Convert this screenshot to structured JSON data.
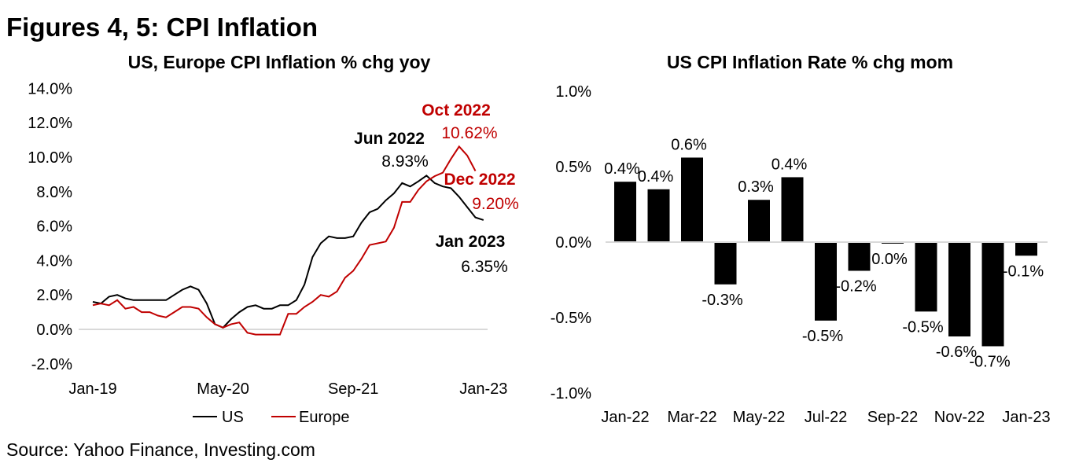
{
  "figure_title": "Figures 4, 5: CPI Inflation",
  "source": "Source: Yahoo Finance, Investing.com",
  "colors": {
    "us": "#000000",
    "europe": "#C00000",
    "bars": "#000000",
    "zero_line": "#D9D9D9"
  },
  "chart_data": [
    {
      "type": "line",
      "title": "US, Europe CPI Inflation % chg yoy",
      "x_start": "Jan-19",
      "x_frequency": "monthly",
      "x_tick_labels": [
        "Jan-19",
        "May-20",
        "Sep-21",
        "Jan-23"
      ],
      "y_tick_labels": [
        "14.0%",
        "12.0%",
        "10.0%",
        "8.0%",
        "6.0%",
        "4.0%",
        "2.0%",
        "0.0%",
        "-2.0%"
      ],
      "ylim": [
        -2,
        14
      ],
      "legend": {
        "position": "bottom",
        "entries": [
          "US",
          "Europe"
        ]
      },
      "series": [
        {
          "name": "US",
          "values": [
            1.6,
            1.5,
            1.9,
            2.0,
            1.8,
            1.7,
            1.7,
            1.7,
            1.7,
            1.7,
            2.0,
            2.3,
            2.5,
            2.3,
            1.5,
            0.3,
            0.1,
            0.6,
            1.0,
            1.3,
            1.4,
            1.2,
            1.2,
            1.4,
            1.4,
            1.7,
            2.6,
            4.2,
            5.0,
            5.4,
            5.3,
            5.3,
            5.4,
            6.2,
            6.8,
            7.0,
            7.5,
            7.9,
            8.5,
            8.3,
            8.6,
            8.93,
            8.5,
            8.3,
            8.2,
            7.7,
            7.1,
            6.5,
            6.35
          ]
        },
        {
          "name": "Europe",
          "values": [
            1.4,
            1.5,
            1.4,
            1.7,
            1.2,
            1.3,
            1.0,
            1.0,
            0.8,
            0.7,
            1.0,
            1.3,
            1.3,
            1.2,
            0.7,
            0.3,
            0.1,
            0.3,
            0.4,
            -0.2,
            -0.3,
            -0.3,
            -0.3,
            -0.3,
            0.9,
            0.9,
            1.3,
            1.6,
            2.0,
            1.9,
            2.2,
            3.0,
            3.4,
            4.1,
            4.9,
            5.0,
            5.1,
            5.9,
            7.4,
            7.4,
            8.1,
            8.6,
            8.9,
            9.1,
            9.9,
            10.62,
            10.1,
            9.2
          ]
        }
      ],
      "annotations": [
        {
          "label": "Oct 2022",
          "value": "10.62%",
          "series": "Europe"
        },
        {
          "label": "Jun 2022",
          "value": "8.93%",
          "series": "US"
        },
        {
          "label": "Dec 2022",
          "value": "9.20%",
          "series": "Europe"
        },
        {
          "label": "Jan 2023",
          "value": "6.35%",
          "series": "US"
        }
      ]
    },
    {
      "type": "bar",
      "title": "US CPI Inflation Rate % chg mom",
      "categories": [
        "Jan-22",
        "Feb-22",
        "Mar-22",
        "Apr-22",
        "May-22",
        "Jun-22",
        "Jul-22",
        "Aug-22",
        "Sep-22",
        "Oct-22",
        "Nov-22",
        "Dec-22",
        "Jan-23"
      ],
      "x_tick_labels": [
        "Jan-22",
        "Mar-22",
        "May-22",
        "Jul-22",
        "Sep-22",
        "Nov-22",
        "Jan-23"
      ],
      "values": [
        0.4,
        0.35,
        0.56,
        -0.28,
        0.28,
        0.43,
        -0.52,
        -0.19,
        -0.01,
        -0.46,
        -0.625,
        -0.69,
        -0.09
      ],
      "data_labels": [
        "0.4%",
        "0.4%",
        "0.6%",
        "-0.3%",
        "0.3%",
        "0.4%",
        "-0.5%",
        "-0.2%",
        "0.0%",
        "-0.5%",
        "-0.6%",
        "-0.7%",
        "-0.1%"
      ],
      "y_tick_labels": [
        "1.0%",
        "0.5%",
        "0.0%",
        "-0.5%",
        "-1.0%"
      ],
      "ylim": [
        -1,
        1
      ]
    }
  ]
}
